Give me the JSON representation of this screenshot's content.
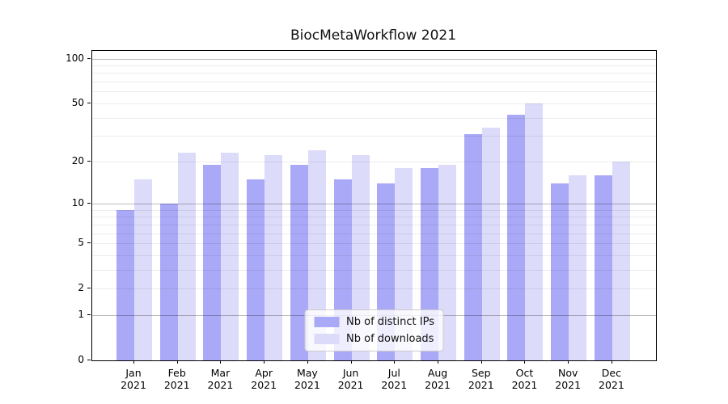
{
  "title": "BiocMetaWorkflow 2021",
  "colors": {
    "distinct_ips_bar": "#a9a9f7",
    "downloads_bar": "#dcdbfa",
    "axis": "#000000",
    "legend_border": "#cccccc"
  },
  "legend": {
    "position": "lower center",
    "items": [
      {
        "label": "Nb of distinct IPs"
      },
      {
        "label": "Nb of downloads"
      }
    ]
  },
  "chart_data": {
    "type": "bar",
    "title": "BiocMetaWorkflow 2021",
    "categories": [
      "Jan 2021",
      "Feb 2021",
      "Mar 2021",
      "Apr 2021",
      "May 2021",
      "Jun 2021",
      "Jul 2021",
      "Aug 2021",
      "Sep 2021",
      "Oct 2021",
      "Nov 2021",
      "Dec 2021"
    ],
    "x_tick_line1": [
      "Jan",
      "Feb",
      "Mar",
      "Apr",
      "May",
      "Jun",
      "Jul",
      "Aug",
      "Sep",
      "Oct",
      "Nov",
      "Dec"
    ],
    "x_tick_line2": "2021",
    "series": [
      {
        "name": "Nb of distinct IPs",
        "color": "#a9a9f7",
        "values": [
          9,
          10,
          19,
          15,
          19,
          15,
          14,
          18,
          31,
          42,
          14,
          16
        ]
      },
      {
        "name": "Nb of downloads",
        "color": "#dcdbfa",
        "values": [
          15,
          23,
          23,
          22,
          24,
          22,
          18,
          19,
          34,
          50,
          16,
          20
        ]
      }
    ],
    "xlabel": "",
    "ylabel": "",
    "yscale": "log1p",
    "ylim": [
      0,
      112
    ],
    "y_tick_values": [
      0,
      1,
      2,
      5,
      10,
      20,
      50,
      100
    ],
    "y_tick_labels": [
      "0",
      "1",
      "2",
      "5",
      "10",
      "20",
      "50",
      "100"
    ],
    "y_major_gridlines": [
      1,
      10,
      100
    ],
    "y_minor_gridlines": [
      2,
      3,
      4,
      5,
      6,
      7,
      8,
      9,
      20,
      30,
      40,
      50,
      60,
      70,
      80,
      90
    ],
    "grid": true,
    "legend_position": "lower center"
  }
}
